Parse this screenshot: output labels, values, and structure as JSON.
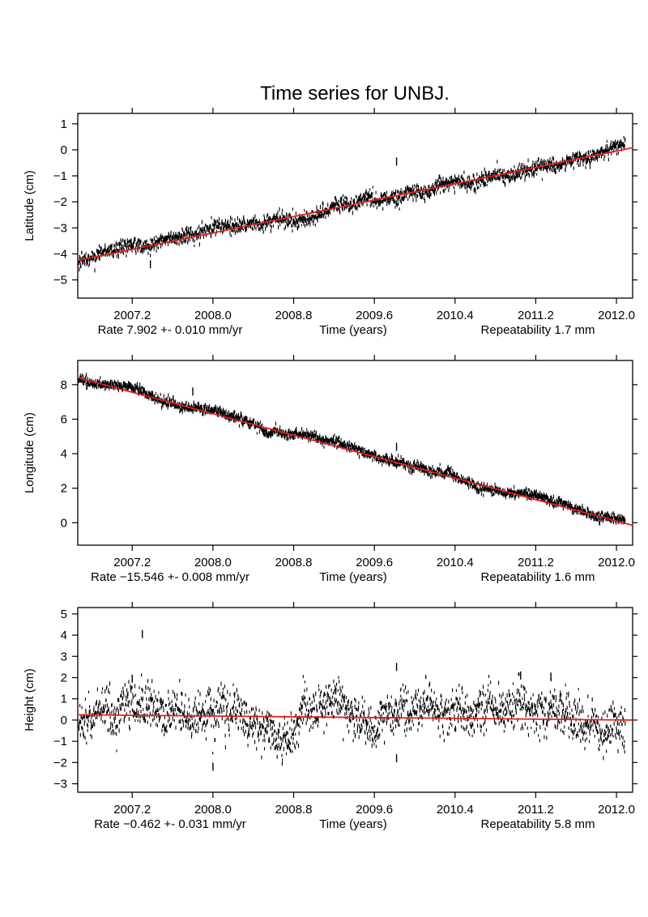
{
  "figure": {
    "title": "Time series for UNBJ.",
    "colors": {
      "data": "#000000",
      "fit": "#e0201b",
      "frame": "#000000"
    }
  },
  "chart_data": [
    {
      "type": "scatter",
      "ylabel": "Latitude (cm)",
      "xlabel": "Time (years)",
      "xlim": [
        2006.66,
        2012.16
      ],
      "ylim": [
        -5.7,
        1.4
      ],
      "xticks": [
        "2007.2",
        "2008.0",
        "2008.8",
        "2009.6",
        "2010.4",
        "2011.2",
        "2012.0"
      ],
      "yticks": [
        "1",
        "0",
        "-1",
        "-2",
        "-3",
        "-4",
        "-5"
      ],
      "rate_text": "Rate 7.902 +- 0.010 mm/yr",
      "repeatability_text": "Repeatability 1.7 mm",
      "trend": {
        "x": [
          2006.66,
          2012.16
        ],
        "y": [
          -4.25,
          0.08
        ]
      },
      "noise": 0.32,
      "wander": 0.1,
      "outliers": [
        {
          "x": 2009.82,
          "y": -0.45
        },
        {
          "x": 2007.38,
          "y": -4.4
        }
      ],
      "series": [
        {
          "values_description": "daily GPS position"
        }
      ]
    },
    {
      "type": "scatter",
      "ylabel": "Longitude (cm)",
      "xlabel": "Time (years)",
      "xlim": [
        2006.66,
        2012.16
      ],
      "ylim": [
        -1.3,
        9.4
      ],
      "xticks": [
        "2007.2",
        "2008.0",
        "2008.8",
        "2009.6",
        "2010.4",
        "2011.2",
        "2012.0"
      ],
      "yticks": [
        "8",
        "6",
        "4",
        "2",
        "0"
      ],
      "rate_text": "Rate −15.546 +- 0.008 mm/yr",
      "repeatability_text": "Repeatability 1.6 mm",
      "trend": {
        "x": [
          2006.66,
          2012.16
        ],
        "y": [
          8.4,
          -0.15
        ]
      },
      "noise": 0.3,
      "wander": 0.12,
      "outliers": [
        {
          "x": 2007.8,
          "y": 7.6
        },
        {
          "x": 2009.82,
          "y": 4.4
        }
      ],
      "series": [
        {
          "values_description": "daily GPS position"
        }
      ]
    },
    {
      "type": "scatter",
      "ylabel": "Height (cm)",
      "xlabel": "Time (years)",
      "xlim": [
        2006.66,
        2012.16
      ],
      "ylim": [
        -3.4,
        5.3
      ],
      "xticks": [
        "2007.2",
        "2008.0",
        "2008.8",
        "2009.6",
        "2010.4",
        "2011.2",
        "2012.0"
      ],
      "yticks": [
        "5",
        "4",
        "3",
        "2",
        "1",
        "0",
        "-1",
        "-2",
        "-3"
      ],
      "rate_text": "Rate −0.462 +- 0.031 mm/yr",
      "repeatability_text": "Repeatability 5.8 mm",
      "trend": {
        "x": [
          2006.66,
          2012.16
        ],
        "y": [
          0.25,
          0.0
        ]
      },
      "noise": 1.1,
      "wander": 0.45,
      "outliers": [
        {
          "x": 2007.3,
          "y": 4.05
        },
        {
          "x": 2007.2,
          "y": 1.95
        },
        {
          "x": 2008.0,
          "y": -2.2
        },
        {
          "x": 2009.82,
          "y": 2.5
        },
        {
          "x": 2009.82,
          "y": -1.8
        },
        {
          "x": 2011.05,
          "y": 2.1
        },
        {
          "x": 2011.35,
          "y": 2.05
        }
      ],
      "series": [
        {
          "values_description": "daily GPS position"
        }
      ]
    }
  ]
}
